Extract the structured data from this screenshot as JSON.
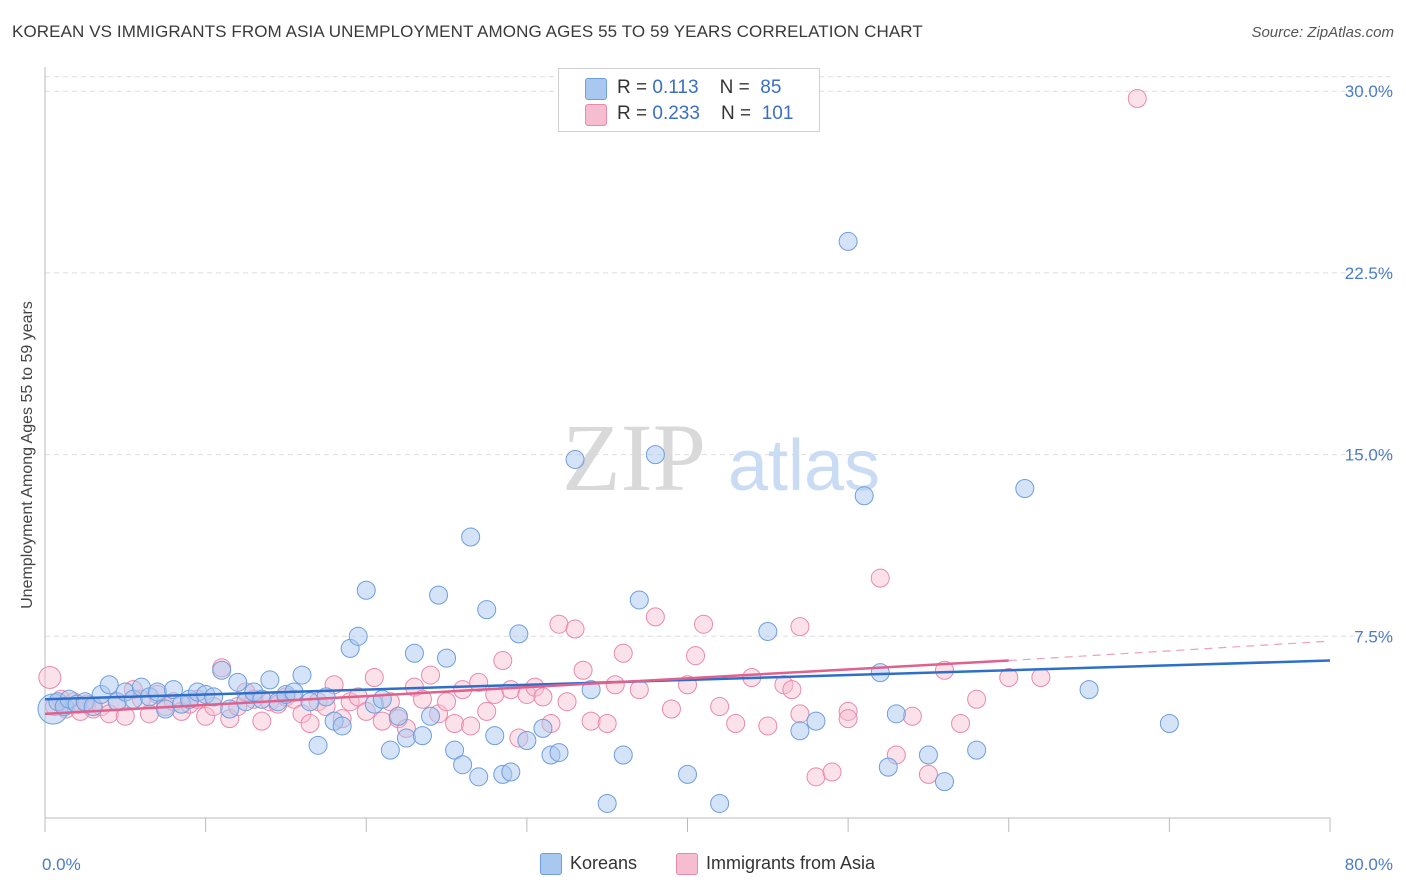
{
  "title": "KOREAN VS IMMIGRANTS FROM ASIA UNEMPLOYMENT AMONG AGES 55 TO 59 YEARS CORRELATION CHART",
  "source": "Source: ZipAtlas.com",
  "watermark": {
    "zip": "ZIP",
    "atlas": "atlas"
  },
  "legend": {
    "rows": [
      {
        "r_label": "R = ",
        "r_value": "0.113",
        "n_label": "N = ",
        "n_value": "85"
      },
      {
        "r_label": "R = ",
        "r_value": "0.233",
        "n_label": "N = ",
        "n_value": "101"
      }
    ]
  },
  "bottom_legend": {
    "koreans": "Koreans",
    "immigrants": "Immigrants from Asia"
  },
  "colors": {
    "blue_fill": "#a9c8f0",
    "blue_stroke": "#6e9edc",
    "blue_line": "#2e6fcc",
    "pink_fill": "#f6bdd0",
    "pink_stroke": "#e88aaa",
    "pink_line": "#e0608e",
    "grid": "#dddddd",
    "tick_text": "#4a7cc8"
  },
  "chart_data": {
    "type": "scatter",
    "title": "KOREAN VS IMMIGRANTS FROM ASIA UNEMPLOYMENT AMONG AGES 55 TO 59 YEARS CORRELATION CHART",
    "xlabel": "",
    "ylabel": "Unemployment Among Ages 55 to 59 years",
    "xlim": [
      0,
      80
    ],
    "ylim": [
      0,
      31
    ],
    "x_tick_labels": [
      "0.0%",
      "80.0%"
    ],
    "y_ticks": [
      7.5,
      15.0,
      22.5,
      30.0
    ],
    "y_tick_labels": [
      "7.5%",
      "15.0%",
      "22.5%",
      "30.0%"
    ],
    "series": [
      {
        "name": "Koreans",
        "r": 0.113,
        "n": 85,
        "trend": {
          "x0": 0,
          "y0": 4.9,
          "x1": 80,
          "y1": 6.5
        },
        "points": [
          [
            0.5,
            4.5
          ],
          [
            0.8,
            4.8
          ],
          [
            1.2,
            4.6
          ],
          [
            1.5,
            4.9
          ],
          [
            2.0,
            4.7
          ],
          [
            2.5,
            4.8
          ],
          [
            3.0,
            4.6
          ],
          [
            3.5,
            5.1
          ],
          [
            4.0,
            5.5
          ],
          [
            4.5,
            4.8
          ],
          [
            5.0,
            5.2
          ],
          [
            5.5,
            4.9
          ],
          [
            6.0,
            5.4
          ],
          [
            6.5,
            5.0
          ],
          [
            7.0,
            5.2
          ],
          [
            7.5,
            4.5
          ],
          [
            8.0,
            5.3
          ],
          [
            8.5,
            4.7
          ],
          [
            9.0,
            4.9
          ],
          [
            9.5,
            5.2
          ],
          [
            10.0,
            5.1
          ],
          [
            10.5,
            5.0
          ],
          [
            11.0,
            6.1
          ],
          [
            11.5,
            4.5
          ],
          [
            12.0,
            5.6
          ],
          [
            12.5,
            4.8
          ],
          [
            13.0,
            5.2
          ],
          [
            13.5,
            4.9
          ],
          [
            14.0,
            5.7
          ],
          [
            14.5,
            4.8
          ],
          [
            15.0,
            5.1
          ],
          [
            15.5,
            5.2
          ],
          [
            16.0,
            5.9
          ],
          [
            16.5,
            4.8
          ],
          [
            17.0,
            3.0
          ],
          [
            17.5,
            5.0
          ],
          [
            18.0,
            4.0
          ],
          [
            18.5,
            3.8
          ],
          [
            19.0,
            7.0
          ],
          [
            19.5,
            7.5
          ],
          [
            20.0,
            9.4
          ],
          [
            20.5,
            4.7
          ],
          [
            21.0,
            4.9
          ],
          [
            21.5,
            2.8
          ],
          [
            22.0,
            4.2
          ],
          [
            22.5,
            3.3
          ],
          [
            23.0,
            6.8
          ],
          [
            23.5,
            3.4
          ],
          [
            24.0,
            4.2
          ],
          [
            24.5,
            9.2
          ],
          [
            25.0,
            6.6
          ],
          [
            25.5,
            2.8
          ],
          [
            26.0,
            2.2
          ],
          [
            26.5,
            11.6
          ],
          [
            27.0,
            1.7
          ],
          [
            27.5,
            8.6
          ],
          [
            28.0,
            3.4
          ],
          [
            28.5,
            1.8
          ],
          [
            29.0,
            1.9
          ],
          [
            29.5,
            7.6
          ],
          [
            30.0,
            3.2
          ],
          [
            31.0,
            3.7
          ],
          [
            31.5,
            2.6
          ],
          [
            32.0,
            2.7
          ],
          [
            33.0,
            14.8
          ],
          [
            34.0,
            5.3
          ],
          [
            35.0,
            0.6
          ],
          [
            36.0,
            2.6
          ],
          [
            37.0,
            9.0
          ],
          [
            38.0,
            15.0
          ],
          [
            40.0,
            1.8
          ],
          [
            42.0,
            0.6
          ],
          [
            45.0,
            7.7
          ],
          [
            47.0,
            3.6
          ],
          [
            48.0,
            4.0
          ],
          [
            50.0,
            23.8
          ],
          [
            51.0,
            13.3
          ],
          [
            52.0,
            6.0
          ],
          [
            52.5,
            2.1
          ],
          [
            53.0,
            4.3
          ],
          [
            55.0,
            2.6
          ],
          [
            56.0,
            1.5
          ],
          [
            58.0,
            2.8
          ],
          [
            61.0,
            13.6
          ],
          [
            65.0,
            5.3
          ],
          [
            70.0,
            3.9
          ]
        ]
      },
      {
        "name": "Immigrants from Asia",
        "r": 0.233,
        "n": 101,
        "trend": {
          "x0": 0,
          "y0": 4.3,
          "x1": 60,
          "y1": 6.5,
          "dash_x1": 80,
          "dash_y1": 7.3
        },
        "points": [
          [
            0.3,
            5.8
          ],
          [
            0.6,
            4.6
          ],
          [
            1.0,
            4.9
          ],
          [
            1.3,
            4.5
          ],
          [
            1.8,
            4.8
          ],
          [
            2.2,
            4.4
          ],
          [
            2.6,
            4.7
          ],
          [
            3.0,
            4.5
          ],
          [
            3.5,
            4.6
          ],
          [
            4.0,
            4.3
          ],
          [
            4.5,
            4.8
          ],
          [
            5.0,
            4.2
          ],
          [
            5.5,
            5.3
          ],
          [
            6.0,
            4.9
          ],
          [
            6.5,
            4.3
          ],
          [
            7.0,
            5.1
          ],
          [
            7.5,
            4.6
          ],
          [
            8.0,
            4.8
          ],
          [
            8.5,
            4.4
          ],
          [
            9.0,
            4.7
          ],
          [
            9.5,
            4.9
          ],
          [
            10.0,
            4.2
          ],
          [
            10.5,
            4.6
          ],
          [
            11.0,
            6.2
          ],
          [
            11.5,
            4.1
          ],
          [
            12.0,
            4.6
          ],
          [
            12.5,
            5.2
          ],
          [
            13.0,
            4.9
          ],
          [
            13.5,
            4.0
          ],
          [
            14.0,
            4.8
          ],
          [
            14.5,
            4.7
          ],
          [
            15.0,
            5.0
          ],
          [
            15.5,
            4.9
          ],
          [
            16.0,
            4.3
          ],
          [
            16.5,
            3.9
          ],
          [
            17.0,
            4.8
          ],
          [
            17.5,
            4.6
          ],
          [
            18.0,
            5.5
          ],
          [
            18.5,
            4.1
          ],
          [
            19.0,
            4.8
          ],
          [
            19.5,
            5.0
          ],
          [
            20.0,
            4.4
          ],
          [
            20.5,
            5.8
          ],
          [
            21.0,
            4.0
          ],
          [
            21.5,
            4.8
          ],
          [
            22.0,
            4.1
          ],
          [
            22.5,
            3.7
          ],
          [
            23.0,
            5.4
          ],
          [
            23.5,
            4.9
          ],
          [
            24.0,
            5.9
          ],
          [
            24.5,
            4.3
          ],
          [
            25.0,
            4.8
          ],
          [
            25.5,
            3.9
          ],
          [
            26.0,
            5.3
          ],
          [
            26.5,
            3.8
          ],
          [
            27.0,
            5.6
          ],
          [
            27.5,
            4.4
          ],
          [
            28.0,
            5.1
          ],
          [
            28.5,
            6.5
          ],
          [
            29.0,
            5.3
          ],
          [
            29.5,
            3.3
          ],
          [
            30.0,
            5.1
          ],
          [
            30.5,
            5.4
          ],
          [
            31.0,
            5.0
          ],
          [
            31.5,
            3.9
          ],
          [
            32.0,
            8.0
          ],
          [
            32.5,
            4.8
          ],
          [
            33.0,
            7.8
          ],
          [
            33.5,
            6.1
          ],
          [
            34.0,
            4.0
          ],
          [
            35.0,
            3.9
          ],
          [
            35.5,
            5.5
          ],
          [
            36.0,
            6.8
          ],
          [
            37.0,
            5.3
          ],
          [
            38.0,
            8.3
          ],
          [
            39.0,
            4.5
          ],
          [
            40.0,
            5.5
          ],
          [
            40.5,
            6.7
          ],
          [
            41.0,
            8.0
          ],
          [
            42.0,
            4.6
          ],
          [
            43.0,
            3.9
          ],
          [
            44.0,
            5.8
          ],
          [
            45.0,
            3.8
          ],
          [
            46.0,
            5.5
          ],
          [
            46.5,
            5.3
          ],
          [
            47.0,
            7.9
          ],
          [
            48.0,
            1.7
          ],
          [
            49.0,
            1.9
          ],
          [
            50.0,
            4.4
          ],
          [
            52.0,
            9.9
          ],
          [
            53.0,
            2.6
          ],
          [
            54.0,
            4.2
          ],
          [
            55.0,
            1.8
          ],
          [
            56.0,
            6.1
          ],
          [
            57.0,
            3.9
          ],
          [
            58.0,
            4.9
          ],
          [
            60.0,
            5.8
          ],
          [
            62.0,
            5.8
          ],
          [
            68.0,
            29.7
          ],
          [
            47.0,
            4.3
          ],
          [
            50.0,
            4.1
          ]
        ]
      }
    ]
  }
}
